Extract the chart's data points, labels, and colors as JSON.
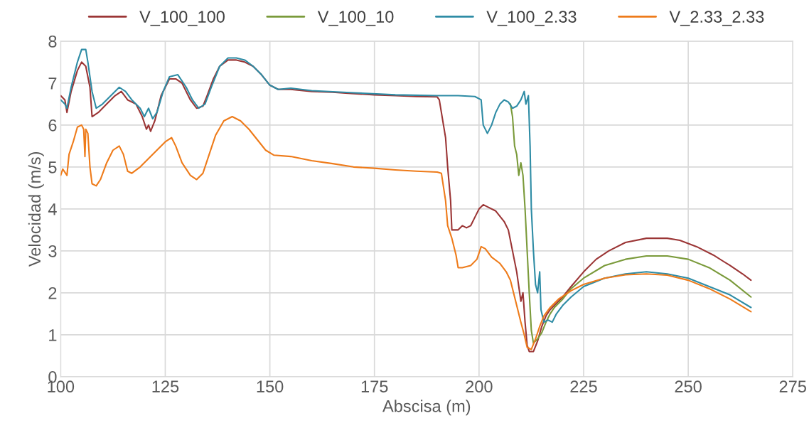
{
  "chart_data": {
    "type": "line",
    "xlabel": "Abscisa (m)",
    "ylabel": "Velocidad (m/s)",
    "xlim": [
      100,
      275
    ],
    "xticks": [
      100,
      125,
      150,
      175,
      200,
      225,
      250,
      275
    ],
    "ylim": [
      0,
      8
    ],
    "yticks": [
      0,
      1,
      2,
      3,
      4,
      5,
      6,
      7,
      8
    ],
    "grid": true,
    "legend": "top",
    "marker": "none",
    "line_style": "solid",
    "series": [
      {
        "name": "V_100_100",
        "color": "#9b3535",
        "x": [
          100,
          101,
          101.5,
          102.5,
          104,
          105,
          106,
          107,
          107.5,
          109,
          111,
          113,
          114.5,
          116,
          118,
          119.5,
          120.5,
          121,
          121.5,
          122.5,
          124,
          126,
          127.5,
          129,
          131,
          132.5,
          134,
          135,
          136.5,
          138,
          140,
          142,
          144,
          146,
          148,
          150,
          152,
          155,
          160,
          165,
          170,
          175,
          180,
          185,
          190,
          190.5,
          191.5,
          192,
          192.5,
          193.2,
          193.5,
          194.5,
          195,
          196,
          197,
          198,
          199,
          200,
          201,
          202,
          204,
          206,
          207,
          208,
          209,
          210,
          210.5,
          211,
          211.5,
          212,
          213,
          214,
          215,
          216,
          217,
          218,
          220,
          222,
          225,
          228,
          231,
          235,
          240,
          245,
          248,
          252,
          256,
          260,
          263,
          265
        ],
        "values": [
          6.7,
          6.6,
          6.3,
          6.8,
          7.3,
          7.5,
          7.4,
          6.9,
          6.2,
          6.3,
          6.5,
          6.7,
          6.8,
          6.6,
          6.5,
          6.2,
          5.9,
          6.0,
          5.85,
          6.1,
          6.7,
          7.1,
          7.1,
          7.0,
          6.6,
          6.4,
          6.45,
          6.7,
          7.1,
          7.4,
          7.55,
          7.55,
          7.5,
          7.4,
          7.2,
          6.95,
          6.85,
          6.85,
          6.8,
          6.78,
          6.75,
          6.72,
          6.7,
          6.68,
          6.67,
          6.6,
          6.0,
          5.7,
          5.0,
          4.2,
          3.5,
          3.5,
          3.5,
          3.6,
          3.55,
          3.6,
          3.8,
          4.0,
          4.1,
          4.05,
          3.95,
          3.7,
          3.5,
          3.0,
          2.5,
          1.8,
          2.0,
          1.3,
          0.75,
          0.6,
          0.6,
          0.85,
          1.2,
          1.45,
          1.6,
          1.7,
          1.9,
          2.15,
          2.5,
          2.8,
          3.0,
          3.2,
          3.3,
          3.3,
          3.25,
          3.1,
          2.9,
          2.65,
          2.45,
          2.3
        ]
      },
      {
        "name": "V_100_10",
        "color": "#7a9a3a",
        "x": [
          207.5,
          208,
          208.5,
          209,
          209.5,
          210,
          210.5,
          211,
          211.5,
          212,
          212.5,
          213,
          214,
          215,
          216,
          217,
          218,
          220,
          222,
          225,
          230,
          235,
          240,
          245,
          250,
          255,
          260,
          265
        ],
        "values": [
          6.5,
          6.2,
          5.5,
          5.3,
          4.8,
          5.1,
          4.8,
          4.0,
          3.0,
          2.0,
          1.1,
          0.8,
          0.9,
          1.05,
          1.3,
          1.5,
          1.65,
          1.85,
          2.1,
          2.35,
          2.65,
          2.8,
          2.88,
          2.88,
          2.8,
          2.6,
          2.3,
          1.9
        ]
      },
      {
        "name": "V_100_2.33",
        "color": "#2e8ca5",
        "x": [
          100,
          101,
          101.5,
          102.5,
          104,
          105,
          106,
          106.5,
          107.5,
          108.5,
          110,
          112,
          114,
          115.5,
          117,
          119,
          120,
          121,
          122,
          123,
          124.5,
          126,
          128,
          130,
          131.5,
          133,
          134.5,
          136,
          138,
          140,
          142,
          144,
          146,
          148,
          150,
          152,
          155,
          160,
          170,
          180,
          190,
          195,
          199,
          200.5,
          201,
          202,
          203,
          204,
          205,
          206,
          207,
          208,
          209,
          210,
          210.8,
          211.2,
          211.8,
          212.2,
          212.5,
          213,
          213.5,
          214,
          214.5,
          214.8,
          215.5,
          216.5,
          217.5,
          218.5,
          220,
          222,
          225,
          230,
          235,
          240,
          245,
          250,
          255,
          260,
          265
        ],
        "values": [
          6.6,
          6.5,
          6.4,
          6.9,
          7.5,
          7.8,
          7.8,
          7.5,
          6.8,
          6.4,
          6.5,
          6.7,
          6.9,
          6.8,
          6.6,
          6.4,
          6.2,
          6.4,
          6.15,
          6.3,
          6.8,
          7.15,
          7.2,
          6.9,
          6.6,
          6.4,
          6.5,
          6.9,
          7.4,
          7.6,
          7.6,
          7.55,
          7.4,
          7.2,
          6.95,
          6.85,
          6.88,
          6.82,
          6.77,
          6.72,
          6.7,
          6.7,
          6.68,
          6.6,
          6.0,
          5.8,
          6.0,
          6.3,
          6.5,
          6.6,
          6.55,
          6.4,
          6.45,
          6.6,
          6.8,
          6.5,
          6.7,
          5.5,
          4.0,
          3.0,
          2.2,
          2.0,
          2.5,
          1.6,
          1.3,
          1.35,
          1.3,
          1.5,
          1.7,
          1.9,
          2.15,
          2.35,
          2.45,
          2.5,
          2.45,
          2.35,
          2.15,
          1.95,
          1.65
        ]
      },
      {
        "name": "V_2.33_2.33",
        "color": "#ee7b1a",
        "x": [
          100,
          100.5,
          101.5,
          102,
          103,
          104,
          105,
          105.5,
          105.8,
          106,
          106.5,
          107,
          107.5,
          108.5,
          109.5,
          111,
          112.5,
          114,
          115,
          116,
          117,
          119,
          121,
          123,
          125,
          126.5,
          127.5,
          129,
          131,
          132.5,
          134,
          135.5,
          137,
          139,
          141,
          143,
          145,
          147,
          149,
          151,
          155,
          160,
          165,
          170,
          175,
          180,
          185,
          190,
          191,
          192,
          192.5,
          193.5,
          194.5,
          195,
          196,
          198,
          199.5,
          200.5,
          201.5,
          203,
          205,
          206.5,
          207.5,
          208.5,
          209,
          210,
          210.8,
          211.5,
          212.5,
          213.5,
          214.5,
          215.5,
          217,
          219,
          222,
          225,
          230,
          235,
          240,
          245,
          250,
          255,
          260,
          265
        ],
        "values": [
          4.8,
          4.95,
          4.8,
          5.3,
          5.6,
          5.95,
          6.0,
          5.9,
          5.25,
          5.9,
          5.8,
          5.0,
          4.6,
          4.55,
          4.7,
          5.1,
          5.4,
          5.5,
          5.3,
          4.9,
          4.85,
          5.0,
          5.2,
          5.4,
          5.6,
          5.7,
          5.5,
          5.1,
          4.8,
          4.7,
          4.85,
          5.3,
          5.75,
          6.1,
          6.2,
          6.1,
          5.9,
          5.65,
          5.4,
          5.28,
          5.25,
          5.15,
          5.08,
          5.0,
          4.97,
          4.93,
          4.9,
          4.88,
          4.85,
          4.2,
          3.6,
          3.3,
          2.9,
          2.6,
          2.6,
          2.65,
          2.8,
          3.1,
          3.05,
          2.85,
          2.7,
          2.5,
          2.3,
          1.9,
          1.7,
          1.3,
          1.0,
          0.7,
          0.65,
          0.9,
          1.2,
          1.45,
          1.65,
          1.85,
          2.05,
          2.2,
          2.35,
          2.43,
          2.45,
          2.42,
          2.3,
          2.1,
          1.85,
          1.55
        ]
      }
    ]
  }
}
